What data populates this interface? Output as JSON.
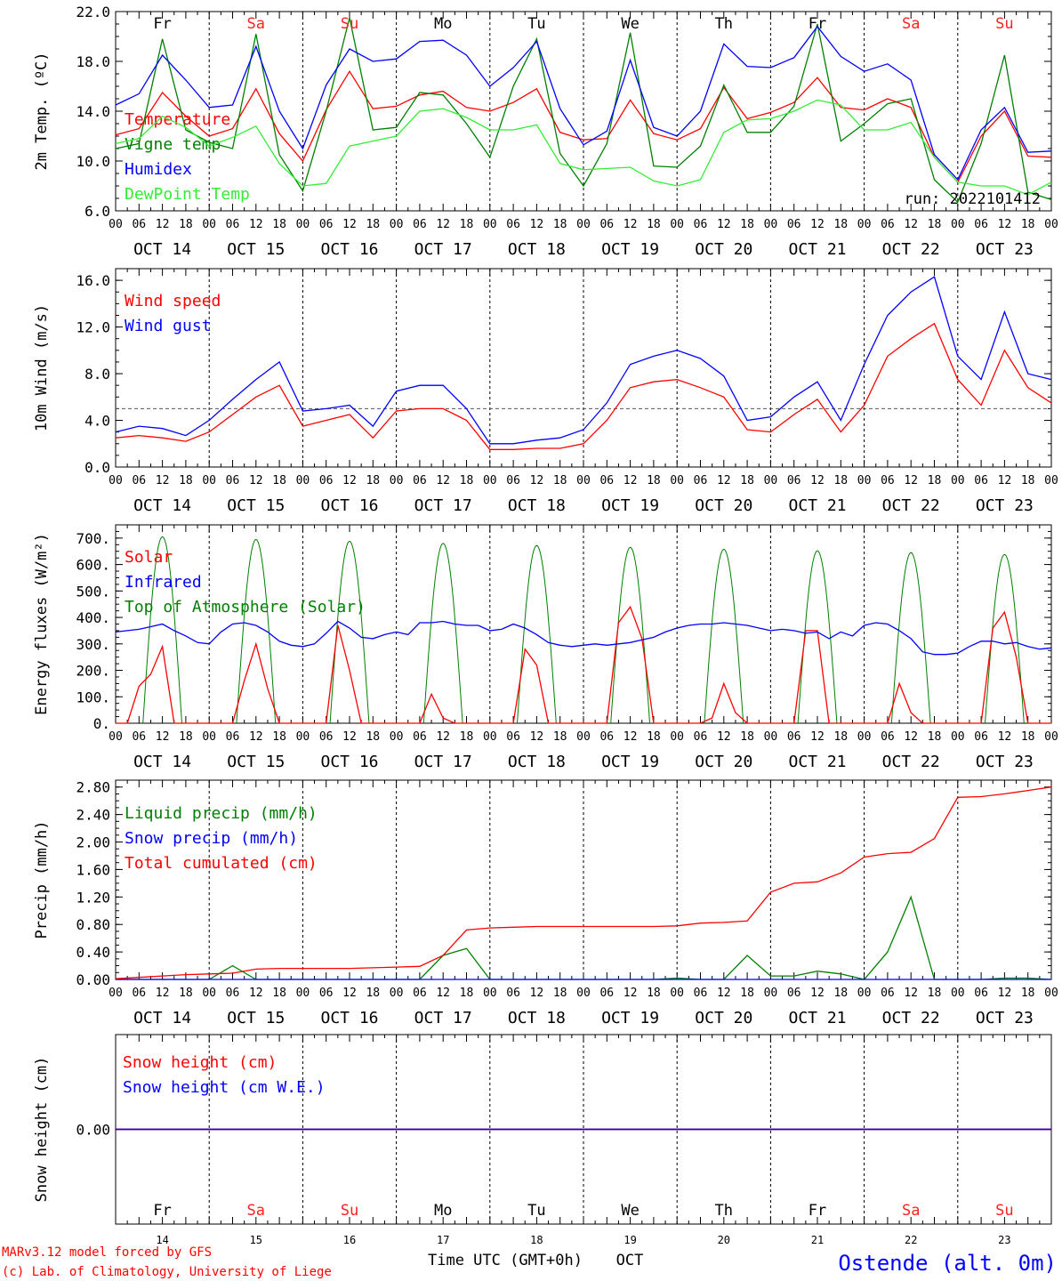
{
  "days": [
    {
      "abbr": "Fr",
      "date": "OCT 14",
      "num": "14",
      "weekend": false
    },
    {
      "abbr": "Sa",
      "date": "OCT 15",
      "num": "15",
      "weekend": true
    },
    {
      "abbr": "Su",
      "date": "OCT 16",
      "num": "16",
      "weekend": true
    },
    {
      "abbr": "Mo",
      "date": "OCT 17",
      "num": "17",
      "weekend": false
    },
    {
      "abbr": "Tu",
      "date": "OCT 18",
      "num": "18",
      "weekend": false
    },
    {
      "abbr": "We",
      "date": "OCT 19",
      "num": "19",
      "weekend": false
    },
    {
      "abbr": "Th",
      "date": "OCT 20",
      "num": "20",
      "weekend": false
    },
    {
      "abbr": "Fr",
      "date": "OCT 21",
      "num": "21",
      "weekend": false
    },
    {
      "abbr": "Sa",
      "date": "OCT 22",
      "num": "22",
      "weekend": true
    },
    {
      "abbr": "Su",
      "date": "OCT 23",
      "num": "23",
      "weekend": true
    }
  ],
  "hour_ticks": [
    "00",
    "06",
    "12",
    "18"
  ],
  "colors": {
    "red": "#ff0000",
    "green": "#008000",
    "blue": "#0000ff",
    "lightgreen": "#33ee33",
    "weekend": "#ff2222",
    "purple": "#800080"
  },
  "footer": {
    "model": "MARv3.12 model forced by GFS",
    "lab": "(c) Lab. of Climatology, University of Liege",
    "xlabel": "Time UTC (GMT+0h)",
    "month": "OCT",
    "station": "Ostende (alt. 0m)"
  },
  "chart_data": [
    {
      "type": "line",
      "ylabel": "2m Temp. (ºC)",
      "ylim": [
        6,
        22
      ],
      "yticks": [
        "6.0",
        "10.0",
        "14.0",
        "18.0",
        "22.0"
      ],
      "run_label": "run: 2022101412",
      "x_hours": [
        0,
        6,
        12,
        18,
        24,
        30,
        36,
        42,
        48,
        54,
        60,
        66,
        72,
        78,
        84,
        90,
        96,
        102,
        108,
        114,
        120,
        126,
        132,
        138,
        144,
        150,
        156,
        162,
        168,
        174,
        180,
        186,
        192,
        198,
        204,
        210,
        216,
        222,
        228,
        234,
        240
      ],
      "series": [
        {
          "name": "Temperature",
          "color": "red",
          "values": [
            12.1,
            12.6,
            15.5,
            13.6,
            12.0,
            12.6,
            15.8,
            12.2,
            10.0,
            14.1,
            17.2,
            14.2,
            14.4,
            15.3,
            15.6,
            14.3,
            14.0,
            14.7,
            15.8,
            12.3,
            11.7,
            11.8,
            14.9,
            12.2,
            11.7,
            12.6,
            15.9,
            13.4,
            13.9,
            14.7,
            16.7,
            14.3,
            14.1,
            15.0,
            14.3,
            10.3,
            8.3,
            12.0,
            14.0,
            10.4,
            10.3
          ]
        },
        {
          "name": "Vigne temp",
          "color": "green",
          "values": [
            11.0,
            11.4,
            19.8,
            12.5,
            11.5,
            11.0,
            20.2,
            10.5,
            7.6,
            14.0,
            21.5,
            12.5,
            12.7,
            15.5,
            15.3,
            13.0,
            10.3,
            16.0,
            19.8,
            10.6,
            8.0,
            11.4,
            20.3,
            9.6,
            9.5,
            11.2,
            16.1,
            12.3,
            12.3,
            14.4,
            21.0,
            11.6,
            13.0,
            14.6,
            15.0,
            8.5,
            6.7,
            11.4,
            18.5,
            7.5,
            6.9
          ]
        },
        {
          "name": "Humidex",
          "color": "blue",
          "values": [
            14.5,
            15.4,
            18.5,
            16.5,
            14.3,
            14.5,
            19.2,
            14.0,
            11.0,
            16.1,
            19.0,
            18.0,
            18.2,
            19.6,
            19.7,
            18.5,
            16.0,
            17.5,
            19.6,
            14.2,
            11.3,
            12.4,
            18.1,
            12.7,
            12.0,
            14.0,
            19.4,
            17.6,
            17.5,
            18.3,
            20.8,
            18.4,
            17.2,
            17.8,
            16.5,
            10.5,
            8.5,
            12.5,
            14.3,
            10.7,
            10.8
          ]
        },
        {
          "name": "DewPoint Temp",
          "color": "lightgreen",
          "values": [
            11.4,
            11.8,
            13.6,
            12.7,
            11.2,
            11.9,
            12.8,
            9.8,
            8.0,
            8.2,
            11.2,
            11.6,
            12.0,
            14.0,
            14.2,
            13.5,
            12.5,
            12.5,
            12.9,
            9.8,
            9.3,
            9.4,
            9.5,
            8.4,
            8.0,
            8.5,
            12.3,
            13.3,
            13.4,
            14.0,
            14.9,
            14.5,
            12.5,
            12.5,
            13.1,
            10.3,
            8.3,
            8.0,
            8.0,
            7.3,
            8.3
          ]
        }
      ]
    },
    {
      "type": "line",
      "ylabel": "10m Wind (m/s)",
      "ylim": [
        0,
        17
      ],
      "yticks": [
        "0.0",
        "4.0",
        "8.0",
        "12.0",
        "16.0"
      ],
      "reference_line": 5.0,
      "x_hours": [
        0,
        6,
        12,
        18,
        24,
        30,
        36,
        42,
        48,
        54,
        60,
        66,
        72,
        78,
        84,
        90,
        96,
        102,
        108,
        114,
        120,
        126,
        132,
        138,
        144,
        150,
        156,
        162,
        168,
        174,
        180,
        186,
        192,
        198,
        204,
        210,
        216,
        222,
        228,
        234,
        240
      ],
      "series": [
        {
          "name": "Wind speed",
          "color": "red",
          "values": [
            2.5,
            2.7,
            2.5,
            2.2,
            3.0,
            4.5,
            6.0,
            7.0,
            3.5,
            4.0,
            4.5,
            2.5,
            4.8,
            5.0,
            5.0,
            4.0,
            1.5,
            1.5,
            1.6,
            1.6,
            2.0,
            4.0,
            6.8,
            7.3,
            7.5,
            6.8,
            6.0,
            3.2,
            3.0,
            4.5,
            5.8,
            3.0,
            5.3,
            9.5,
            11.0,
            12.3,
            7.5,
            5.3,
            10.0,
            6.8,
            5.5
          ]
        },
        {
          "name": "Wind gust",
          "color": "blue",
          "values": [
            3.0,
            3.5,
            3.3,
            2.7,
            4.0,
            5.8,
            7.5,
            9.0,
            4.8,
            5.0,
            5.3,
            3.5,
            6.5,
            7.0,
            7.0,
            5.0,
            2.0,
            2.0,
            2.3,
            2.5,
            3.2,
            5.5,
            8.8,
            9.5,
            10.0,
            9.3,
            7.8,
            4.0,
            4.3,
            6.0,
            7.3,
            4.0,
            8.8,
            13.0,
            15.0,
            16.3,
            9.5,
            7.5,
            13.3,
            8.0,
            7.5
          ]
        }
      ]
    },
    {
      "type": "line",
      "ylabel": "Energy fluxes (W/m²)",
      "ylim": [
        0,
        750
      ],
      "yticks": [
        "0.",
        "100.",
        "200.",
        "300.",
        "400.",
        "500.",
        "600.",
        "700."
      ],
      "x_hours": [
        0,
        3,
        6,
        9,
        12,
        15,
        18,
        21,
        24,
        27,
        30,
        33,
        36,
        39,
        42,
        45,
        48,
        51,
        54,
        57,
        60,
        63,
        66,
        69,
        72,
        75,
        78,
        81,
        84,
        87,
        90,
        93,
        96,
        99,
        102,
        105,
        108,
        111,
        114,
        117,
        120,
        123,
        126,
        129,
        132,
        135,
        138,
        141,
        144,
        147,
        150,
        153,
        156,
        159,
        162,
        165,
        168,
        171,
        174,
        177,
        180,
        183,
        186,
        189,
        192,
        195,
        198,
        201,
        204,
        207,
        210,
        213,
        216,
        219,
        222,
        225,
        228,
        231,
        234,
        237,
        240
      ],
      "toa_peaks": [
        705,
        695,
        688,
        680,
        672,
        665,
        658,
        652,
        645,
        638
      ],
      "series": [
        {
          "name": "Solar",
          "color": "red",
          "values": [
            0,
            0,
            140,
            185,
            290,
            0,
            0,
            0,
            0,
            0,
            0,
            160,
            300,
            130,
            0,
            0,
            0,
            0,
            0,
            370,
            200,
            0,
            0,
            0,
            0,
            0,
            0,
            110,
            20,
            0,
            0,
            0,
            0,
            0,
            0,
            280,
            220,
            0,
            0,
            0,
            0,
            0,
            0,
            380,
            440,
            320,
            0,
            0,
            0,
            0,
            0,
            20,
            150,
            40,
            0,
            0,
            0,
            0,
            0,
            350,
            350,
            0,
            0,
            0,
            0,
            0,
            0,
            150,
            40,
            0,
            0,
            0,
            0,
            0,
            0,
            360,
            420,
            250,
            0,
            0,
            0
          ]
        },
        {
          "name": "Infrared",
          "color": "blue",
          "values": [
            345,
            350,
            355,
            365,
            375,
            350,
            330,
            305,
            300,
            345,
            375,
            380,
            370,
            345,
            310,
            295,
            290,
            300,
            340,
            385,
            360,
            325,
            320,
            335,
            345,
            335,
            380,
            380,
            385,
            375,
            370,
            370,
            350,
            355,
            375,
            360,
            335,
            305,
            295,
            290,
            295,
            300,
            295,
            300,
            305,
            315,
            325,
            345,
            360,
            370,
            375,
            375,
            380,
            375,
            370,
            360,
            350,
            355,
            350,
            340,
            345,
            320,
            345,
            330,
            370,
            380,
            375,
            350,
            320,
            270,
            260,
            260,
            265,
            290,
            310,
            310,
            300,
            305,
            290,
            280,
            285
          ]
        },
        {
          "name": "Top of Atmosphere (Solar)",
          "color": "green",
          "values": []
        }
      ]
    },
    {
      "type": "line",
      "ylabel": "Precip (mm/h)",
      "ylim": [
        0,
        2.9
      ],
      "yticks": [
        "0.00",
        "0.40",
        "0.80",
        "1.20",
        "1.60",
        "2.00",
        "2.40",
        "2.80"
      ],
      "x_hours": [
        0,
        6,
        12,
        18,
        24,
        30,
        36,
        42,
        48,
        54,
        60,
        66,
        72,
        78,
        84,
        90,
        96,
        102,
        108,
        114,
        120,
        126,
        132,
        138,
        144,
        150,
        156,
        162,
        168,
        174,
        180,
        186,
        192,
        198,
        204,
        210,
        216,
        222,
        228,
        234,
        240
      ],
      "series": [
        {
          "name": "Liquid precip (mm/h)",
          "color": "green",
          "values": [
            0,
            0,
            0,
            0,
            0,
            0.2,
            0,
            0,
            0,
            0,
            0,
            0,
            0,
            0,
            0.35,
            0.45,
            0,
            0,
            0,
            0,
            0,
            0,
            0,
            0,
            0.02,
            0,
            0,
            0.35,
            0.05,
            0.05,
            0.12,
            0.08,
            0,
            0.4,
            1.2,
            0,
            0,
            0,
            0.02,
            0.02,
            0
          ]
        },
        {
          "name": "Snow precip (mm/h)",
          "color": "blue",
          "values": [
            0,
            0,
            0,
            0,
            0,
            0,
            0,
            0,
            0,
            0,
            0,
            0,
            0,
            0,
            0,
            0,
            0,
            0,
            0,
            0,
            0,
            0,
            0,
            0,
            0,
            0,
            0,
            0,
            0,
            0,
            0,
            0,
            0,
            0,
            0,
            0,
            0,
            0,
            0,
            0,
            0
          ]
        },
        {
          "name": "Total cumulated (cm)",
          "color": "red",
          "values": [
            0.01,
            0.03,
            0.05,
            0.07,
            0.08,
            0.09,
            0.15,
            0.16,
            0.16,
            0.16,
            0.16,
            0.17,
            0.18,
            0.19,
            0.35,
            0.72,
            0.75,
            0.76,
            0.77,
            0.77,
            0.77,
            0.77,
            0.77,
            0.77,
            0.78,
            0.82,
            0.83,
            0.85,
            1.27,
            1.4,
            1.42,
            1.55,
            1.78,
            1.83,
            1.85,
            2.05,
            2.65,
            2.66,
            2.7,
            2.75,
            2.8
          ]
        }
      ]
    },
    {
      "type": "line",
      "ylabel": "Snow height (cm)",
      "yticks": [
        "0.00"
      ],
      "x_hours": [
        0,
        240
      ],
      "series": [
        {
          "name": "Snow height (cm)",
          "color": "red",
          "values": [
            0,
            0
          ]
        },
        {
          "name": "Snow height (cm W.E.)",
          "color": "blue",
          "values": [
            0,
            0
          ]
        }
      ]
    }
  ]
}
